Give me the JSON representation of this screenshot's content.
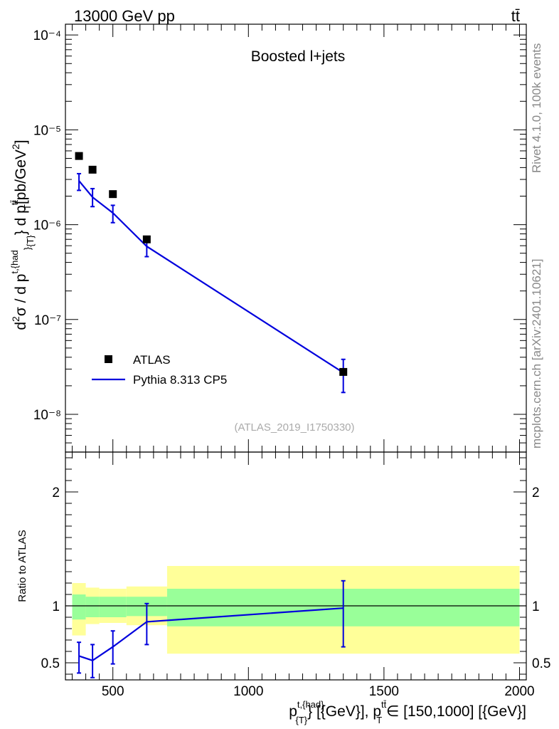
{
  "header": {
    "left": "13000 GeV pp",
    "right": "tt̄"
  },
  "side_labels": {
    "rivet": "Rivet 4.1.0,  100k events",
    "mcplots": "mcplots.cern.ch [arXiv:2401.10621]"
  },
  "chart_data": [
    {
      "type": "scatter",
      "title": "Boosted l+jets",
      "watermark": "(ATLAS_2019_I1750330)",
      "ylabel": "d²σ / d p^{t,{had}}_{T} d p^{tt̄}_T [pb/GeV²]",
      "yscale": "log",
      "ylim": [
        4e-09,
        0.00013
      ],
      "xlim": [
        325,
        2025
      ],
      "ytick_labels": [
        "10⁻⁸",
        "10⁻⁷",
        "10⁻⁶",
        "10⁻⁵",
        "10⁻⁴"
      ],
      "ytick_values": [
        1e-08,
        1e-07,
        1e-06,
        1e-05,
        0.0001
      ],
      "legend": {
        "position": "lower-left",
        "entries": [
          "ATLAS",
          "Pythia 8.313 CP5"
        ]
      },
      "series": [
        {
          "name": "ATLAS",
          "style": "markers",
          "x": [
            375,
            425,
            500,
            625,
            1350
          ],
          "y": [
            5.3e-06,
            3.8e-06,
            2.1e-06,
            7e-07,
            2.8e-08
          ]
        },
        {
          "name": "Pythia 8.313 CP5",
          "style": "line",
          "color": "#0000dd",
          "x": [
            375,
            425,
            500,
            625,
            1350
          ],
          "y": [
            2.9e-06,
            1.95e-06,
            1.33e-06,
            5.9e-07,
            2.75e-08
          ],
          "yerr_low": [
            2.3e-06,
            1.55e-06,
            1.05e-06,
            4.6e-07,
            1.7e-08
          ],
          "yerr_high": [
            3.45e-06,
            2.4e-06,
            1.6e-06,
            7.2e-07,
            3.8e-08
          ]
        }
      ]
    },
    {
      "type": "line",
      "ylabel": "Ratio to ATLAS",
      "xlabel": "p^{t,{had}}_{T} [{GeV}], p^{tt̄}_T ∈ [150,1000] [{GeV}]",
      "xlim": [
        325,
        2025
      ],
      "ylim": [
        0.35,
        2.35
      ],
      "xtick_labels": [
        "500",
        "1000",
        "1500",
        "2000"
      ],
      "xtick_values": [
        500,
        1000,
        1500,
        2000
      ],
      "ytick_labels": [
        "0.5",
        "1",
        "2"
      ],
      "ytick_values": [
        0.5,
        1,
        2
      ],
      "bands": [
        {
          "xlo": 350,
          "xhi": 400,
          "inner": [
            0.88,
            1.1
          ],
          "outer": [
            0.74,
            1.2
          ]
        },
        {
          "xlo": 400,
          "xhi": 450,
          "inner": [
            0.9,
            1.08
          ],
          "outer": [
            0.84,
            1.16
          ]
        },
        {
          "xlo": 450,
          "xhi": 550,
          "inner": [
            0.9,
            1.08
          ],
          "outer": [
            0.85,
            1.15
          ]
        },
        {
          "xlo": 550,
          "xhi": 700,
          "inner": [
            0.91,
            1.08
          ],
          "outer": [
            0.83,
            1.17
          ]
        },
        {
          "xlo": 700,
          "xhi": 2000,
          "inner": [
            0.82,
            1.15
          ],
          "outer": [
            0.58,
            1.35
          ]
        }
      ],
      "series": [
        {
          "name": "Pythia 8.313 CP5",
          "color": "#0000dd",
          "x": [
            375,
            425,
            500,
            625,
            1350
          ],
          "y": [
            0.56,
            0.52,
            0.64,
            0.86,
            0.98
          ],
          "yerr_low": [
            0.41,
            0.37,
            0.49,
            0.66,
            0.64
          ],
          "yerr_high": [
            0.68,
            0.66,
            0.78,
            1.02,
            1.22
          ]
        }
      ]
    }
  ]
}
